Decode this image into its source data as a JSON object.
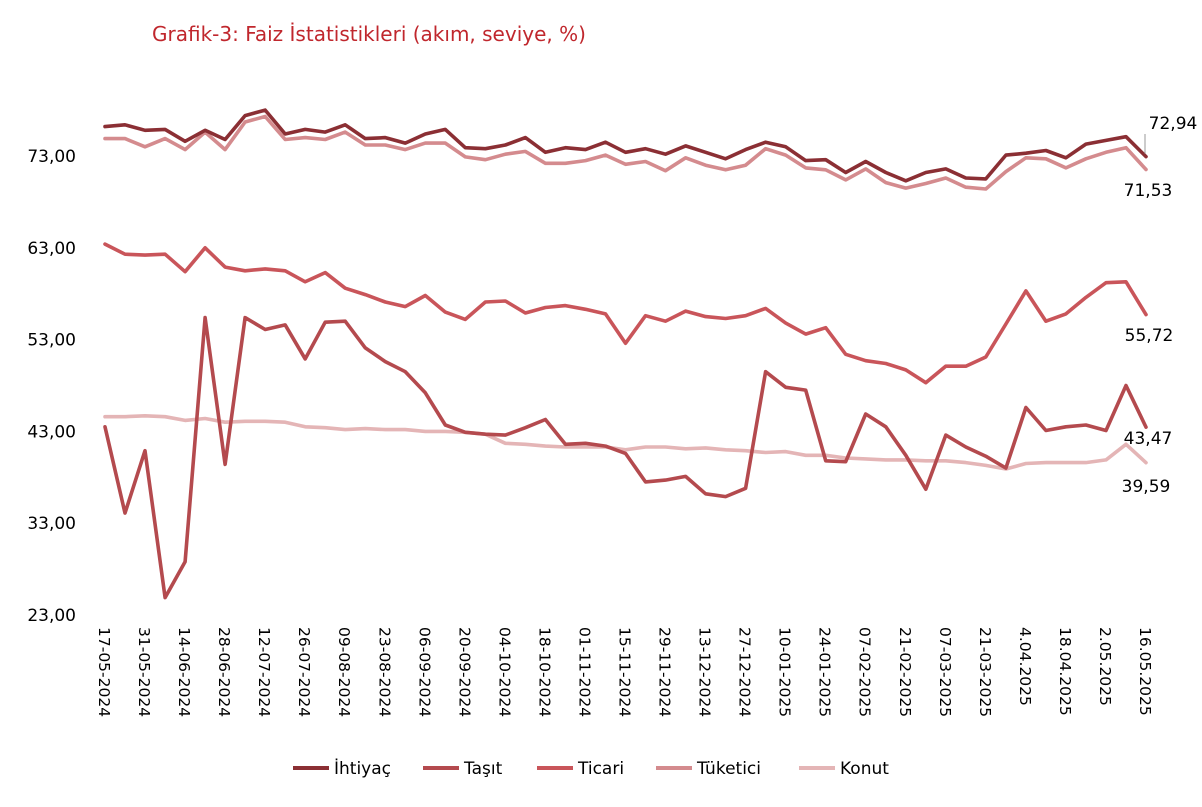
{
  "chart_data": {
    "type": "line",
    "title": "Grafik-3: Faiz İstatistikleri (akım, seviye, %)",
    "xlabel": "",
    "ylabel": "",
    "ylim": [
      23,
      78
    ],
    "yticks": [
      "23,00",
      "33,00",
      "43,00",
      "53,00",
      "63,00",
      "73,00"
    ],
    "ytick_values": [
      23,
      33,
      43,
      53,
      63,
      73
    ],
    "grid": false,
    "legend_position": "bottom",
    "x": [
      "17-05-2024",
      "24-05-2024",
      "31-05-2024",
      "07-06-2024",
      "14-06-2024",
      "21-06-2024",
      "28-06-2024",
      "05-07-2024",
      "12-07-2024",
      "19-07-2024",
      "26-07-2024",
      "02-08-2024",
      "09-08-2024",
      "16-08-2024",
      "23-08-2024",
      "30-08-2024",
      "06-09-2024",
      "13-09-2024",
      "20-09-2024",
      "27-09-2024",
      "04-10-2024",
      "11-10-2024",
      "18-10-2024",
      "25-10-2024",
      "01-11-2024",
      "08-11-2024",
      "15-11-2024",
      "22-11-2024",
      "29-11-2024",
      "06-12-2024",
      "13-12-2024",
      "20-12-2024",
      "27-12-2024",
      "03-01-2025",
      "10-01-2025",
      "17-01-2025",
      "24-01-2025",
      "31-01-2025",
      "07-02-2025",
      "14-02-2025",
      "21-02-2025",
      "28-02-2025",
      "07-03-2025",
      "14-03-2025",
      "21-03-2025",
      "28-03-2025",
      "4.04.2025",
      "11.04.2025",
      "18.04.2025",
      "25.04.2025",
      "2.05.2025",
      "9.05.2025",
      "16.05.2025"
    ],
    "x_tick_labels": [
      "17-05-2024",
      "31-05-2024",
      "14-06-2024",
      "28-06-2024",
      "12-07-2024",
      "26-07-2024",
      "09-08-2024",
      "23-08-2024",
      "06-09-2024",
      "20-09-2024",
      "04-10-2024",
      "18-10-2024",
      "01-11-2024",
      "15-11-2024",
      "29-11-2024",
      "13-12-2024",
      "27-12-2024",
      "10-01-2025",
      "24-01-2025",
      "07-02-2025",
      "21-02-2025",
      "07-03-2025",
      "21-03-2025",
      "4.04.2025",
      "18.04.2025",
      "2.05.2025",
      "16.05.2025"
    ],
    "series": [
      {
        "name": "İhtiyaç",
        "color": "#8b2f34",
        "values": [
          76.2,
          76.4,
          75.8,
          75.9,
          74.6,
          75.8,
          74.8,
          77.4,
          78.0,
          75.4,
          75.9,
          75.6,
          76.4,
          74.9,
          75.0,
          74.4,
          75.4,
          75.9,
          73.9,
          73.8,
          74.2,
          75.0,
          73.4,
          73.9,
          73.7,
          74.5,
          73.4,
          73.8,
          73.2,
          74.1,
          73.4,
          72.7,
          73.7,
          74.5,
          74.0,
          72.5,
          72.6,
          71.2,
          72.4,
          71.2,
          70.3,
          71.2,
          71.6,
          70.6,
          70.5,
          73.1,
          73.3,
          73.6,
          72.8,
          74.3,
          74.7,
          75.1,
          72.94
        ]
      },
      {
        "name": "Taşıt",
        "color": "#b44a4e",
        "values": [
          43.5,
          34.1,
          40.9,
          24.9,
          28.8,
          55.4,
          39.4,
          55.4,
          54.1,
          54.6,
          50.9,
          54.9,
          55.0,
          52.1,
          50.6,
          49.5,
          47.2,
          43.7,
          42.9,
          42.7,
          42.6,
          43.4,
          44.3,
          41.6,
          41.7,
          41.4,
          40.6,
          37.5,
          37.7,
          38.1,
          36.2,
          35.9,
          36.8,
          49.5,
          47.8,
          47.5,
          39.8,
          39.7,
          44.9,
          43.5,
          40.4,
          36.7,
          42.6,
          41.3,
          40.3,
          39.0,
          45.6,
          43.1,
          43.5,
          43.7,
          43.1,
          48.0,
          43.47
        ]
      },
      {
        "name": "Ticari",
        "color": "#c9555a",
        "values": [
          63.4,
          62.3,
          62.2,
          62.3,
          60.4,
          63.0,
          60.9,
          60.5,
          60.7,
          60.5,
          59.3,
          60.3,
          58.6,
          57.9,
          57.1,
          56.6,
          57.8,
          56.0,
          55.2,
          57.1,
          57.2,
          55.9,
          56.5,
          56.7,
          56.3,
          55.8,
          52.6,
          55.6,
          55.0,
          56.1,
          55.5,
          55.3,
          55.6,
          56.4,
          54.8,
          53.6,
          54.3,
          51.4,
          50.7,
          50.4,
          49.7,
          48.3,
          50.1,
          50.1,
          51.1,
          54.7,
          58.3,
          55.0,
          55.8,
          57.6,
          59.2,
          59.3,
          55.72
        ]
      },
      {
        "name": "Tüketici",
        "color": "#d48b8e",
        "values": [
          74.9,
          74.9,
          74.0,
          74.9,
          73.7,
          75.6,
          73.7,
          76.7,
          77.3,
          74.8,
          75.0,
          74.8,
          75.6,
          74.2,
          74.2,
          73.7,
          74.4,
          74.4,
          72.9,
          72.6,
          73.2,
          73.5,
          72.2,
          72.2,
          72.5,
          73.1,
          72.1,
          72.4,
          71.4,
          72.8,
          72.0,
          71.5,
          72.0,
          73.8,
          73.1,
          71.7,
          71.5,
          70.4,
          71.6,
          70.1,
          69.5,
          70.0,
          70.6,
          69.6,
          69.4,
          71.3,
          72.8,
          72.7,
          71.7,
          72.7,
          73.4,
          73.9,
          71.53
        ]
      },
      {
        "name": "Konut",
        "color": "#e4b5b6",
        "values": [
          44.6,
          44.6,
          44.7,
          44.6,
          44.2,
          44.4,
          44.0,
          44.1,
          44.1,
          44.0,
          43.5,
          43.4,
          43.2,
          43.3,
          43.2,
          43.2,
          43.0,
          43.0,
          42.9,
          42.7,
          41.7,
          41.6,
          41.4,
          41.3,
          41.3,
          41.3,
          41.0,
          41.3,
          41.3,
          41.1,
          41.2,
          41.0,
          40.9,
          40.7,
          40.8,
          40.4,
          40.4,
          40.1,
          40.0,
          39.9,
          39.9,
          39.8,
          39.8,
          39.6,
          39.3,
          38.9,
          39.5,
          39.6,
          39.6,
          39.6,
          39.9,
          41.6,
          39.59
        ]
      }
    ],
    "end_labels": {
      "İhtiyaç": "72,94",
      "Taşıt": "43,47",
      "Ticari": "55,72",
      "Tüketici": "71,53",
      "Konut": "39,59"
    }
  }
}
